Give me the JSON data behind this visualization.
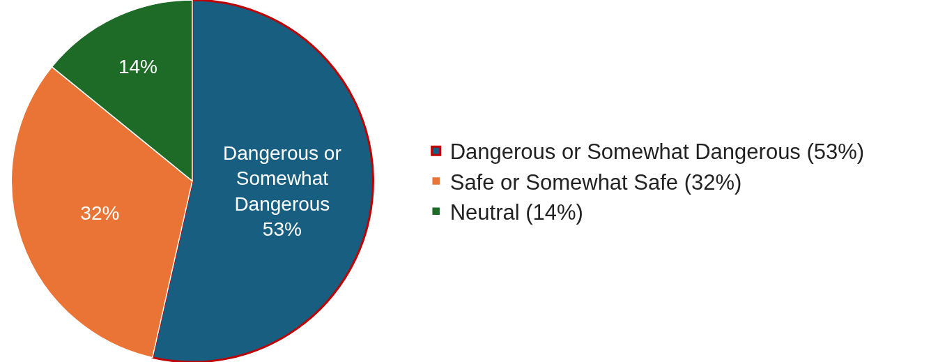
{
  "chart_data": {
    "type": "pie",
    "categories": [
      "Dangerous or Somewhat Dangerous (53%)",
      "Safe or Somewhat Safe (32%)",
      "Neutral (14%)"
    ],
    "values": [
      53,
      32,
      14
    ],
    "colors": [
      "#185e80",
      "#e97435",
      "#1d6b27"
    ],
    "value_labels": [
      "Dangerous or Somewhat Dangerous 53%",
      "32%",
      "14%"
    ],
    "legend": "right"
  }
}
